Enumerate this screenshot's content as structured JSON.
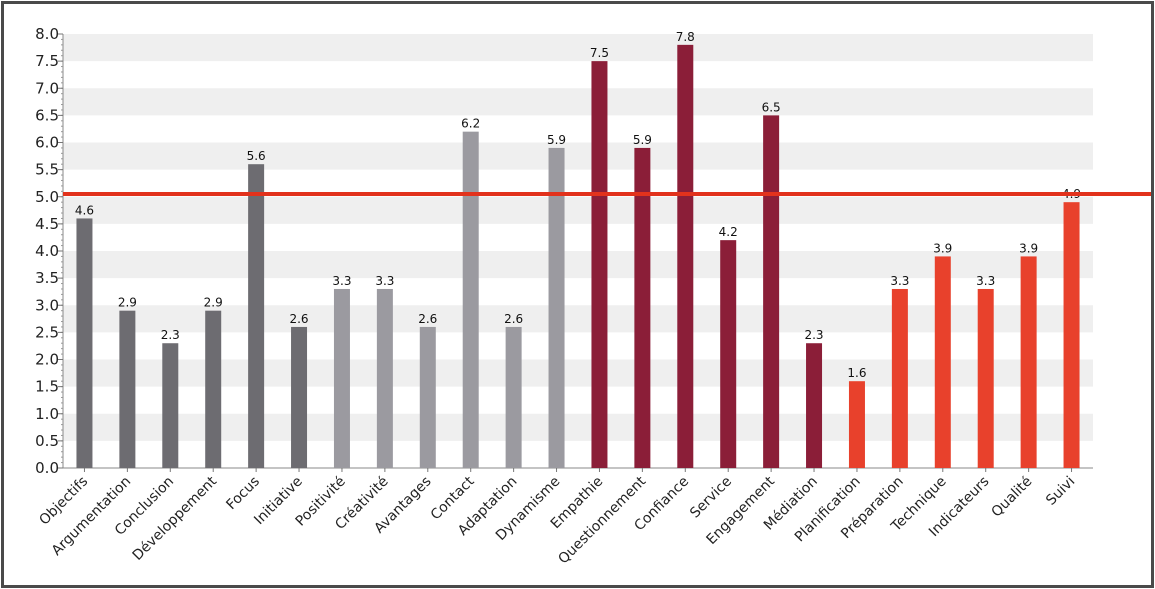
{
  "chart_data": {
    "type": "bar",
    "categories": [
      "Objectifs",
      "Argumentation",
      "Conclusion",
      "Développement",
      "Focus",
      "Initiative",
      "Positivité",
      "Créativité",
      "Avantages",
      "Contact",
      "Adaptation",
      "Dynamisme",
      "Empathie",
      "Questionnement",
      "Confiance",
      "Service",
      "Engagement",
      "Médiation",
      "Planification",
      "Préparation",
      "Technique",
      "Indicateurs",
      "Qualité",
      "Suivi"
    ],
    "values": [
      4.6,
      2.9,
      2.3,
      2.9,
      5.6,
      2.6,
      3.3,
      3.3,
      2.6,
      6.2,
      2.6,
      5.9,
      7.5,
      5.9,
      7.8,
      4.2,
      6.5,
      2.3,
      1.6,
      3.3,
      3.9,
      3.3,
      3.9,
      4.9
    ],
    "value_labels": [
      "4.6",
      "2.9",
      "2.3",
      "2.9",
      "5.6",
      "2.6",
      "3.3",
      "3.3",
      "2.6",
      "6.2",
      "2.6",
      "5.9",
      "7.5",
      "5.9",
      "7.8",
      "4.2",
      "6.5",
      "2.3",
      "1.6",
      "3.3",
      "3.9",
      "3.3",
      "3.9",
      "4.9"
    ],
    "bar_colors": [
      "#6d6c71",
      "#6d6c71",
      "#6d6c71",
      "#6d6c71",
      "#6d6c71",
      "#6d6c71",
      "#9b9aa0",
      "#9b9aa0",
      "#9b9aa0",
      "#9b9aa0",
      "#9b9aa0",
      "#9b9aa0",
      "#8b1e38",
      "#8b1e38",
      "#8b1e38",
      "#8b1e38",
      "#8b1e38",
      "#8b1e38",
      "#e8412c",
      "#e8412c",
      "#e8412c",
      "#e8412c",
      "#e8412c",
      "#e8412c"
    ],
    "ylim": [
      0,
      8
    ],
    "yticks": [
      0.0,
      0.5,
      1.0,
      1.5,
      2.0,
      2.5,
      3.0,
      3.5,
      4.0,
      4.5,
      5.0,
      5.5,
      6.0,
      6.5,
      7.0,
      7.5,
      8.0
    ],
    "ytick_labels": [
      "0.0",
      "0.5",
      "1.0",
      "1.5",
      "2.0",
      "2.5",
      "3.0",
      "3.5",
      "4.0",
      "4.5",
      "5.0",
      "5.5",
      "6.0",
      "6.5",
      "7.0",
      "7.5",
      "8.0"
    ],
    "reference_line": {
      "value": 5.05,
      "color": "#e2321c"
    },
    "grid": "horizontal alternating bands",
    "band_color": "#efefef",
    "xlabel": "",
    "ylabel": "",
    "title": ""
  }
}
